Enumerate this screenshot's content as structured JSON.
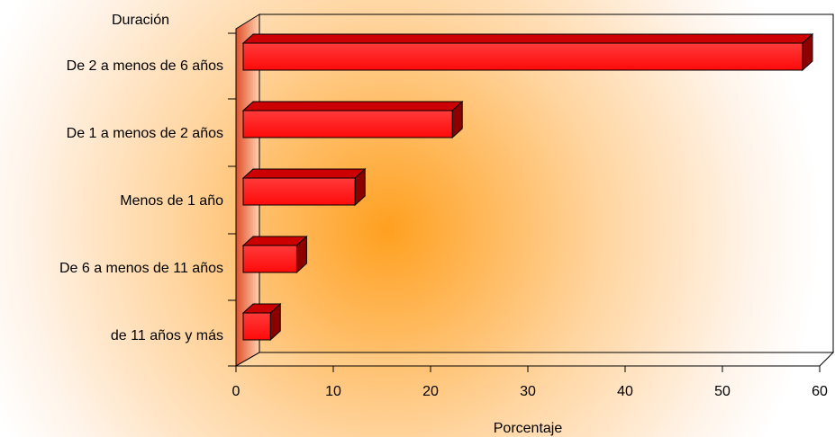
{
  "chart_data": {
    "type": "bar",
    "orientation": "horizontal",
    "ylabel": "Duración",
    "xlabel": "Porcentaje",
    "categories": [
      "De 2 a menos de 6 años",
      "De 1 a menos de 2 años",
      "Menos de 1 año",
      "De 6 a menos de 11 años",
      "de 11 años y más"
    ],
    "values": [
      57.5,
      21.5,
      11.5,
      5.5,
      2.8
    ],
    "xlim": [
      0,
      60
    ],
    "xticks": [
      "0",
      "10",
      "20",
      "30",
      "40",
      "50",
      "60"
    ],
    "grid": false,
    "legend": "none",
    "bar_color": "#ff1a1a",
    "bar_side_color": "#8c0000",
    "bar_top_color": "#cc0000",
    "wall_color": "#f07a3a",
    "background_glow": "#ffa020"
  }
}
